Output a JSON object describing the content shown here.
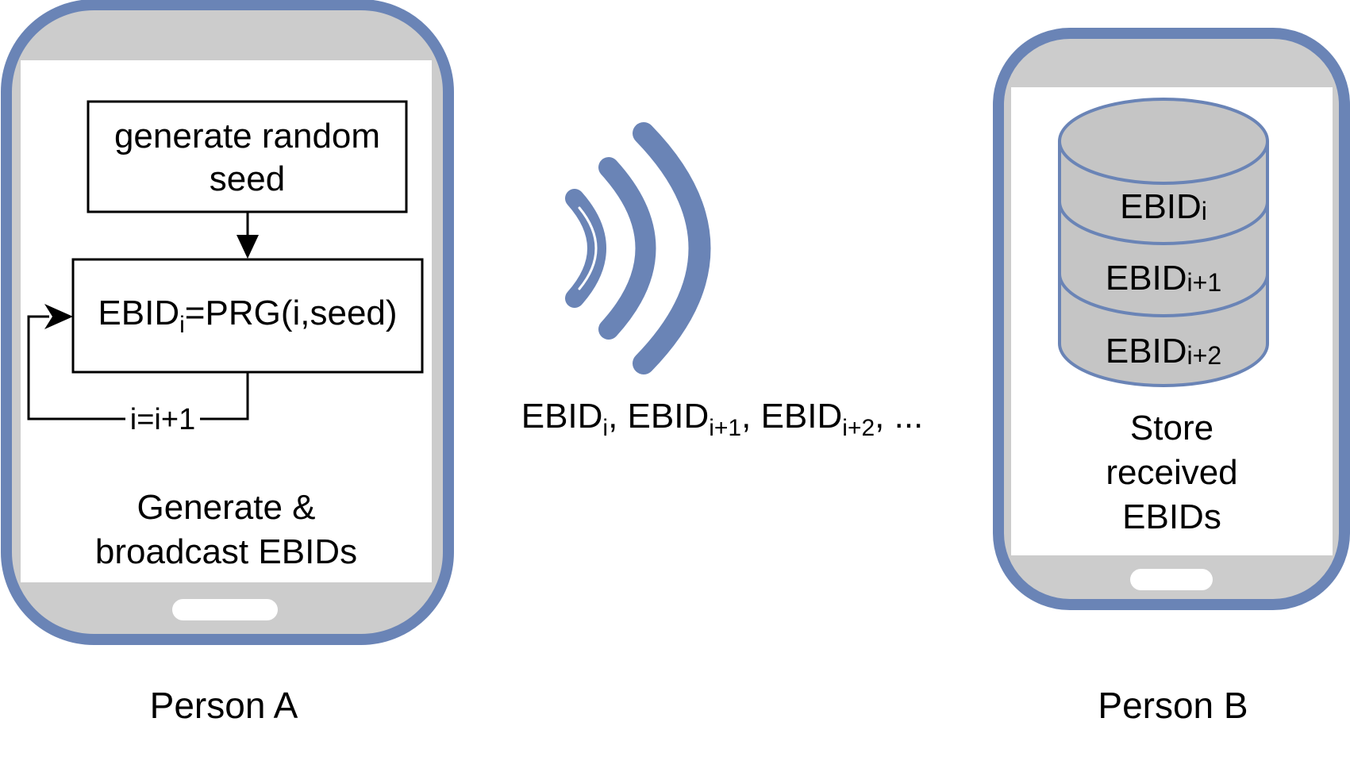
{
  "colors": {
    "phone_frame": "#6a84b6",
    "phone_bezel": "#cccccc",
    "screen": "#ffffff",
    "database_fill": "#c5c5c5",
    "signal": "#6a84b6",
    "line": "#000000"
  },
  "phone_a": {
    "caption": "Person A",
    "box_seed": {
      "line1": "generate random",
      "line2": "seed"
    },
    "box_ebid": {
      "base": "EBID",
      "sub": "i",
      "rest": "=PRG(i,seed)"
    },
    "loop_label": "i=i+1",
    "description": {
      "line1": "Generate &",
      "line2": "broadcast EBIDs"
    }
  },
  "broadcast": {
    "icon": "signal-waves-icon",
    "stream": [
      {
        "base": "EBID",
        "sub": "i",
        "sep": ", "
      },
      {
        "base": "EBID",
        "sub": "i+1",
        "sep": ", "
      },
      {
        "base": "EBID",
        "sub": "i+2",
        "sep": ", ..."
      }
    ]
  },
  "phone_b": {
    "caption": "Person B",
    "database": {
      "icon": "database-icon",
      "rows": [
        {
          "base": "EBID",
          "sub": "i"
        },
        {
          "base": "EBID",
          "sub": "i+1"
        },
        {
          "base": "EBID",
          "sub": "i+2"
        }
      ]
    },
    "description": {
      "line1": "Store",
      "line2": "received",
      "line3": "EBIDs"
    }
  }
}
